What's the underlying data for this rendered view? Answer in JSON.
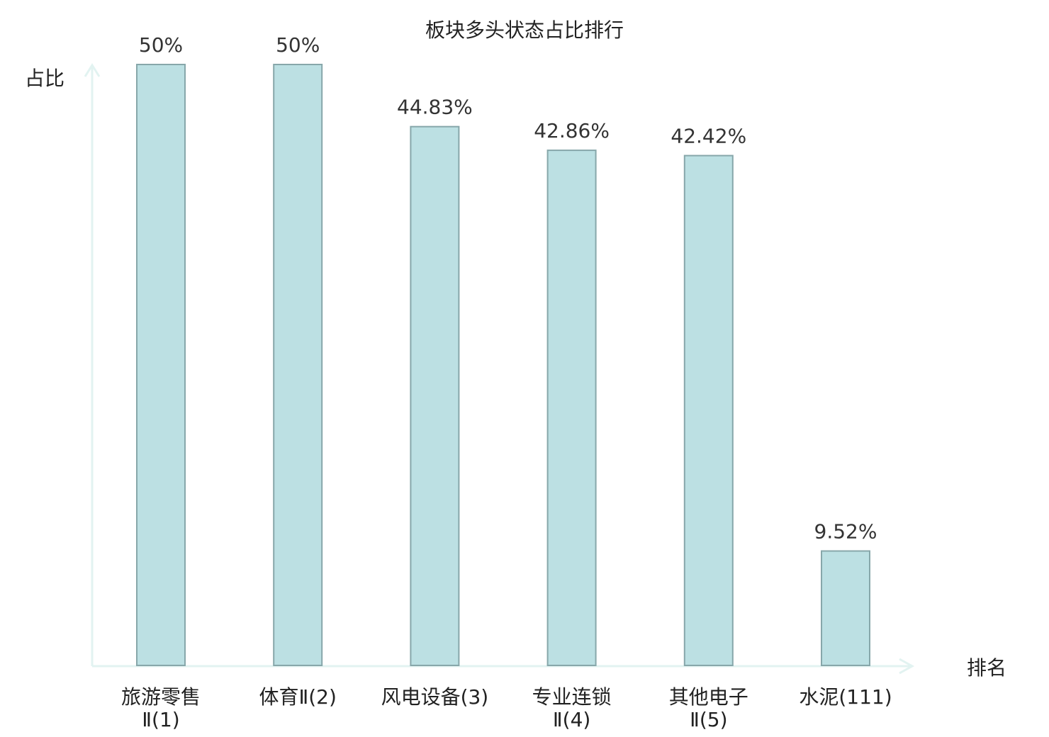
{
  "chart_data": {
    "type": "bar",
    "title": "板块多头状态占比排行",
    "ylabel": "占比",
    "xlabel": "排名",
    "categories": [
      [
        "旅游零售",
        "Ⅱ(1)"
      ],
      [
        "体育Ⅱ(2)"
      ],
      [
        "风电设备(3)"
      ],
      [
        "专业连锁",
        "Ⅱ(4)"
      ],
      [
        "其他电子",
        "Ⅱ(5)"
      ],
      [
        "水泥(111)"
      ]
    ],
    "values": [
      50,
      50,
      44.83,
      42.86,
      42.42,
      9.52
    ],
    "value_labels": [
      "50%",
      "50%",
      "44.83%",
      "42.86%",
      "42.42%",
      "9.52%"
    ],
    "highlight_index": 5,
    "ylim": [
      0,
      50
    ],
    "grid": false,
    "colors": {
      "bar_fill": "#bce0e3",
      "bar_stroke": "#87a7aa",
      "axis": "#e2f3f1",
      "text": "#222222",
      "highlight_text": "#e8141c"
    }
  }
}
